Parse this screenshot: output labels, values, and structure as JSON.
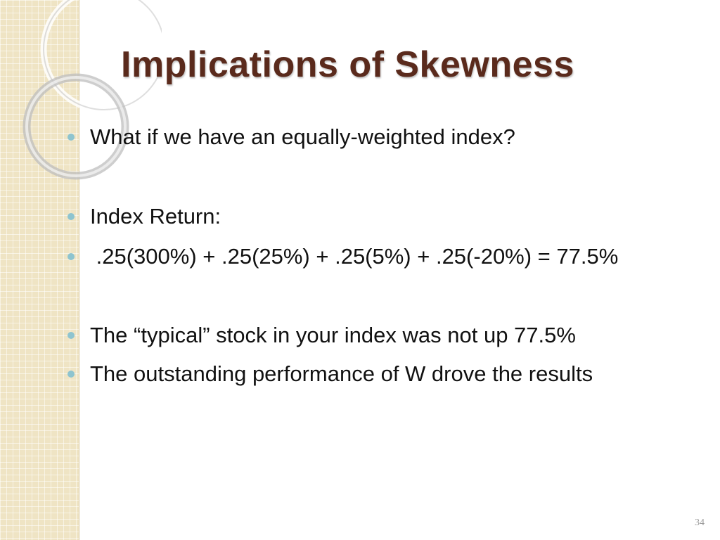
{
  "slide": {
    "title": "Implications of Skewness",
    "bullets": [
      "What if we have an equally-weighted index?",
      "Index Return:",
      " .25(300%) + .25(25%) + .25(5%) + .25(-20%) = 77.5%",
      "The “typical” stock in your index was not up 77.5%",
      "The outstanding performance of W drove the results"
    ],
    "page_number": "34"
  },
  "colors": {
    "title": "#5a2a1c",
    "bullet_dot": "#8ec4cf",
    "side_strip": "#efe4c4",
    "body_text": "#111111"
  }
}
